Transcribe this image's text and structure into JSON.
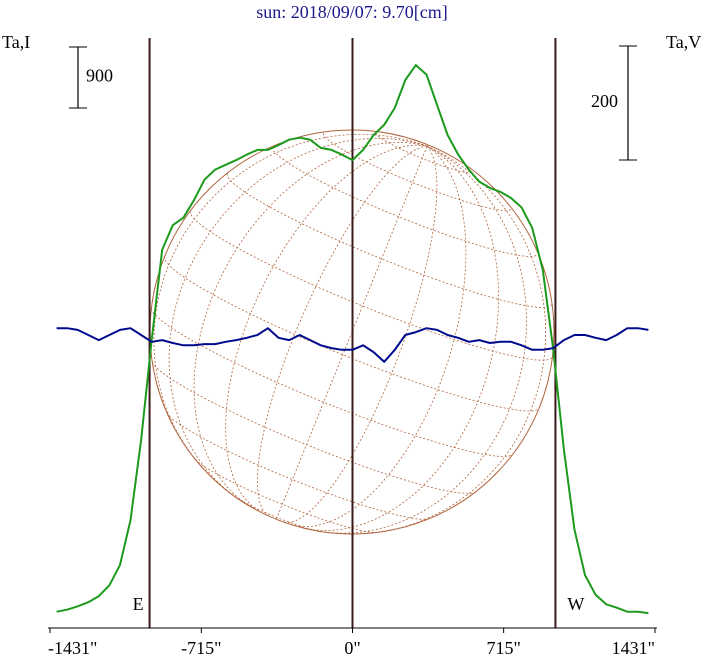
{
  "chart_data": {
    "type": "line",
    "title": "sun: 2018/09/07: 9.70[cm]",
    "y_label": "Ta,I",
    "y2_label": "Ta,V",
    "x": [
      -1400,
      -1350,
      -1300,
      -1250,
      -1200,
      -1150,
      -1100,
      -1050,
      -1000,
      -950,
      -900,
      -850,
      -800,
      -750,
      -700,
      -650,
      -600,
      -550,
      -500,
      -450,
      -400,
      -350,
      -300,
      -250,
      -200,
      -150,
      -100,
      -50,
      0,
      50,
      100,
      150,
      200,
      250,
      300,
      350,
      400,
      450,
      500,
      550,
      600,
      650,
      700,
      750,
      800,
      850,
      900,
      950,
      1000,
      1050,
      1100,
      1150,
      1200,
      1250,
      1300,
      1350,
      1400
    ],
    "series": [
      {
        "name": "Ta,I",
        "color": "#1c9a1c",
        "axis": "y",
        "values": [
          240,
          270,
          320,
          380,
          470,
          630,
          930,
          1590,
          2770,
          4250,
          5580,
          5940,
          6050,
          6310,
          6610,
          6760,
          6830,
          6900,
          6980,
          7050,
          7050,
          7120,
          7200,
          7230,
          7200,
          7080,
          7050,
          6980,
          6900,
          7050,
          7270,
          7420,
          7670,
          8080,
          8300,
          8160,
          7710,
          7270,
          6980,
          6760,
          6580,
          6490,
          6430,
          6340,
          6200,
          5900,
          5280,
          4100,
          2630,
          1450,
          780,
          490,
          350,
          300,
          240,
          240,
          220
        ]
      },
      {
        "name": "Ta,V",
        "color": "#000a8c",
        "axis": "y2",
        "values": [
          26,
          26,
          23,
          14,
          5,
          14,
          23,
          26,
          14,
          2,
          5,
          0,
          -4,
          -4,
          -2,
          -2,
          2,
          5,
          9,
          14,
          26,
          9,
          5,
          14,
          5,
          -4,
          -9,
          -12,
          -12,
          -4,
          -16,
          -33,
          -12,
          14,
          19,
          26,
          23,
          14,
          9,
          2,
          5,
          0,
          2,
          2,
          -4,
          -12,
          -12,
          -9,
          5,
          14,
          14,
          9,
          5,
          14,
          26,
          26,
          23
        ]
      }
    ],
    "xlim": [
      -1431,
      1431
    ],
    "xticks": [
      {
        "value": -1431,
        "label": "-1431\""
      },
      {
        "value": -715,
        "label": "-715\""
      },
      {
        "value": 0,
        "label": "0\""
      },
      {
        "value": 715,
        "label": "715\""
      },
      {
        "value": 1431,
        "label": "1431\""
      }
    ],
    "ylim": [
      0,
      8700
    ],
    "y2lim": [
      -500,
      535
    ],
    "scale_bar_y": 900,
    "scale_bar_y2": 200,
    "vlines": [
      {
        "x": -960,
        "label": "E"
      },
      {
        "x": 0
      },
      {
        "x": 960,
        "label": "W"
      }
    ]
  }
}
